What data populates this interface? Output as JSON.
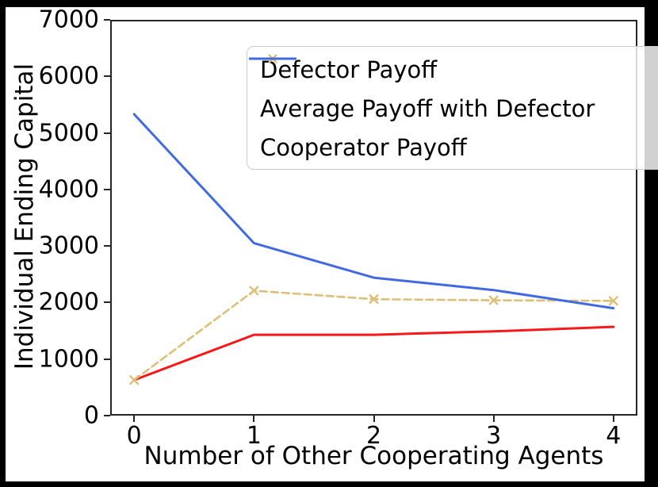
{
  "chart_data": {
    "type": "line",
    "title": "",
    "xlabel": "Number of Other Cooperating Agents",
    "ylabel": "Individual Ending Capital",
    "x": [
      0,
      1,
      2,
      3,
      4
    ],
    "xlim": [
      -0.2,
      4.2
    ],
    "ylim": [
      0,
      7000
    ],
    "xticks": [
      0,
      1,
      2,
      3,
      4
    ],
    "yticks": [
      0,
      1000,
      2000,
      3000,
      4000,
      5000,
      6000,
      7000
    ],
    "grid": false,
    "legend_position": "upper-center-inside",
    "series": [
      {
        "name": "Defector Payoff",
        "color": "#f71919",
        "style": "solid",
        "marker": "none",
        "values": [
          630,
          1430,
          1430,
          1490,
          1570
        ]
      },
      {
        "name": "Average Payoff with Defector",
        "color": "#ddbf77",
        "style": "dashed",
        "marker": "x",
        "values": [
          630,
          2210,
          2060,
          2040,
          2030
        ]
      },
      {
        "name": "Cooperator Payoff",
        "color": "#4169e1",
        "style": "solid",
        "marker": "none",
        "values": [
          5330,
          3050,
          2440,
          2220,
          1900
        ]
      }
    ],
    "frame_color": "#262626",
    "background": "#ffffff",
    "outer_border": "#000000"
  }
}
